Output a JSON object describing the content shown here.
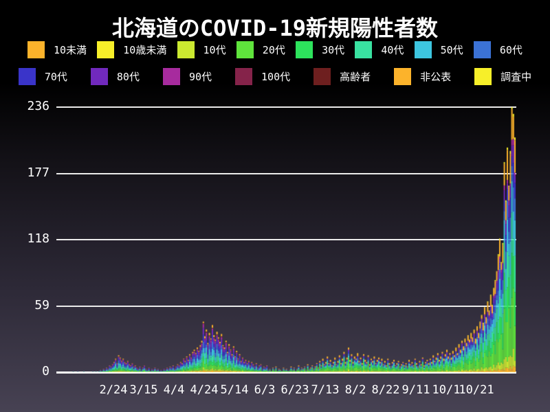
{
  "title": "北海道のCOVID-19新規陽性者数",
  "colors": {
    "background_top": "#000000",
    "background_bottom": "#474253",
    "grid": "#ececec",
    "text": "#ffffff"
  },
  "chart_data": {
    "type": "bar",
    "stacked": true,
    "title": "北海道のCOVID-19新規陽性者数",
    "xlabel": "",
    "ylabel": "",
    "ylim": [
      0,
      236
    ],
    "y_ticks": [
      0,
      59,
      118,
      177,
      236
    ],
    "grid": "horizontal",
    "legend_position": "top",
    "start_date": "1/20",
    "end_date": "11/15",
    "x_tick_labels": [
      "2/24",
      "3/15",
      "4/4",
      "4/24",
      "5/14",
      "6/3",
      "6/23",
      "7/13",
      "8/2",
      "8/22",
      "9/11",
      "10/1",
      "10/21"
    ],
    "x_tick_day_indices": [
      35,
      55,
      75,
      95,
      115,
      135,
      155,
      175,
      195,
      215,
      235,
      255,
      275
    ],
    "series_names": [
      "10未満",
      "10歳未満",
      "10代",
      "20代",
      "30代",
      "40代",
      "50代",
      "60代",
      "70代",
      "80代",
      "90代",
      "100代",
      "高齢者",
      "非公表",
      "調査中"
    ],
    "series_colors": [
      "#fcb32b",
      "#f7ef29",
      "#cbe930",
      "#5fe43c",
      "#2de35c",
      "#39e2a1",
      "#3dc6e0",
      "#3b72d6",
      "#3a34c9",
      "#7129bd",
      "#a72b9e",
      "#85234a",
      "#6e1f1f",
      "#fcb32b",
      "#f7ef29"
    ],
    "daily_totals": [
      0,
      0,
      0,
      0,
      0,
      0,
      0,
      0,
      1,
      0,
      0,
      1,
      0,
      0,
      0,
      1,
      0,
      0,
      0,
      0,
      0,
      1,
      0,
      1,
      0,
      1,
      2,
      1,
      3,
      2,
      4,
      3,
      6,
      5,
      7,
      9,
      12,
      8,
      15,
      13,
      10,
      12,
      9,
      8,
      10,
      7,
      6,
      8,
      5,
      6,
      4,
      3,
      5,
      2,
      4,
      6,
      3,
      2,
      4,
      1,
      3,
      2,
      4,
      2,
      3,
      1,
      2,
      1,
      3,
      2,
      4,
      3,
      5,
      4,
      6,
      3,
      5,
      7,
      6,
      9,
      8,
      12,
      10,
      14,
      11,
      16,
      13,
      18,
      20,
      17,
      22,
      19,
      24,
      28,
      45,
      32,
      38,
      26,
      35,
      30,
      42,
      33,
      29,
      36,
      31,
      27,
      34,
      24,
      22,
      28,
      18,
      25,
      20,
      16,
      23,
      14,
      19,
      12,
      16,
      10,
      13,
      9,
      11,
      8,
      10,
      6,
      9,
      7,
      5,
      8,
      4,
      6,
      7,
      3,
      5,
      4,
      6,
      2,
      3,
      1,
      4,
      2,
      5,
      1,
      3,
      2,
      1,
      4,
      2,
      3,
      1,
      2,
      5,
      2,
      4,
      1,
      3,
      6,
      2,
      4,
      3,
      5,
      2,
      7,
      3,
      4,
      6,
      3,
      5,
      8,
      4,
      10,
      6,
      12,
      7,
      9,
      14,
      8,
      11,
      6,
      9,
      13,
      7,
      10,
      15,
      8,
      12,
      18,
      9,
      13,
      22,
      11,
      16,
      9,
      14,
      12,
      17,
      10,
      13,
      8,
      16,
      11,
      9,
      15,
      7,
      12,
      10,
      14,
      8,
      11,
      13,
      9,
      12,
      7,
      10,
      6,
      12,
      8,
      5,
      9,
      11,
      6,
      8,
      10,
      5,
      7,
      9,
      6,
      8,
      5,
      11,
      7,
      9,
      6,
      12,
      8,
      5,
      10,
      7,
      13,
      6,
      9,
      11,
      8,
      12,
      9,
      15,
      10,
      13,
      17,
      11,
      14,
      18,
      12,
      16,
      20,
      14,
      17,
      13,
      19,
      15,
      22,
      17,
      25,
      20,
      28,
      23,
      30,
      26,
      33,
      29,
      35,
      31,
      38,
      30,
      41,
      35,
      45,
      51,
      44,
      58,
      49,
      63,
      55,
      69,
      60,
      75,
      82,
      90,
      105,
      119,
      98,
      115,
      187,
      153,
      200,
      166,
      197,
      236,
      230,
      209
    ],
    "age_distribution_periods": [
      {
        "from_day": 0,
        "to_day": 137,
        "weights": [
          0.03,
          0.01,
          0.04,
          0.1,
          0.1,
          0.12,
          0.13,
          0.12,
          0.12,
          0.1,
          0.06,
          0.01,
          0.01,
          0.05,
          0.0
        ]
      },
      {
        "from_day": 138,
        "to_day": 242,
        "weights": [
          0.03,
          0.0,
          0.06,
          0.22,
          0.16,
          0.12,
          0.1,
          0.07,
          0.06,
          0.04,
          0.02,
          0.0,
          0.0,
          0.11,
          0.01
        ]
      },
      {
        "from_day": 243,
        "to_day": 300,
        "weights": [
          0.02,
          0.0,
          0.05,
          0.2,
          0.14,
          0.13,
          0.12,
          0.08,
          0.07,
          0.05,
          0.02,
          0.0,
          0.0,
          0.11,
          0.01
        ]
      }
    ],
    "peak_value": 236
  },
  "legend": {
    "row1": [
      "10未満",
      "10歳未満",
      "10代",
      "20代",
      "30代",
      "40代",
      "50代",
      "60代"
    ],
    "row2": [
      "70代",
      "80代",
      "90代",
      "100代",
      "高齢者",
      "非公表",
      "調査中"
    ]
  }
}
